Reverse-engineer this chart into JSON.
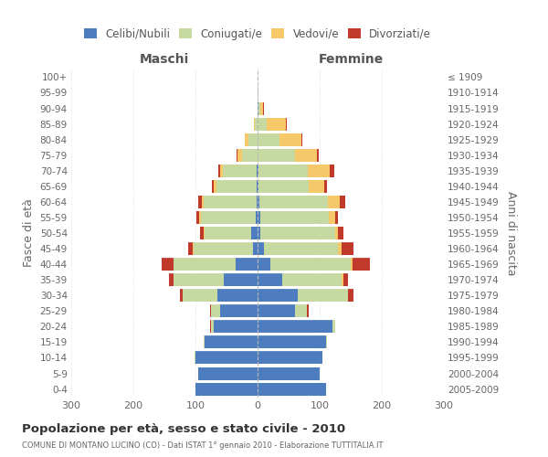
{
  "age_groups": [
    "0-4",
    "5-9",
    "10-14",
    "15-19",
    "20-24",
    "25-29",
    "30-34",
    "35-39",
    "40-44",
    "45-49",
    "50-54",
    "55-59",
    "60-64",
    "65-69",
    "70-74",
    "75-79",
    "80-84",
    "85-89",
    "90-94",
    "95-99",
    "100+"
  ],
  "birth_years": [
    "2005-2009",
    "2000-2004",
    "1995-1999",
    "1990-1994",
    "1985-1989",
    "1980-1984",
    "1975-1979",
    "1970-1974",
    "1965-1969",
    "1960-1964",
    "1955-1959",
    "1950-1954",
    "1945-1949",
    "1940-1944",
    "1935-1939",
    "1930-1934",
    "1925-1929",
    "1920-1924",
    "1915-1919",
    "1910-1914",
    "≤ 1909"
  ],
  "males_celibi": [
    100,
    95,
    100,
    85,
    70,
    60,
    65,
    55,
    35,
    8,
    10,
    3,
    2,
    1,
    1,
    0,
    0,
    0,
    0,
    0,
    0
  ],
  "males_coniugati": [
    0,
    0,
    1,
    2,
    5,
    15,
    55,
    80,
    100,
    95,
    75,
    88,
    85,
    65,
    55,
    25,
    15,
    4,
    0,
    0,
    0
  ],
  "males_vedovi": [
    0,
    0,
    0,
    0,
    0,
    0,
    0,
    0,
    1,
    1,
    2,
    3,
    3,
    5,
    5,
    8,
    5,
    2,
    0,
    0,
    0
  ],
  "males_divorziati": [
    0,
    0,
    0,
    0,
    1,
    2,
    5,
    8,
    18,
    8,
    5,
    5,
    5,
    3,
    2,
    1,
    0,
    0,
    0,
    0,
    0
  ],
  "females_nubili": [
    110,
    100,
    105,
    110,
    120,
    60,
    65,
    40,
    20,
    10,
    5,
    5,
    3,
    2,
    1,
    0,
    0,
    0,
    1,
    0,
    0
  ],
  "females_coniugate": [
    0,
    0,
    0,
    2,
    5,
    20,
    80,
    95,
    130,
    120,
    120,
    110,
    110,
    80,
    80,
    60,
    35,
    15,
    3,
    1,
    0
  ],
  "females_vedove": [
    0,
    0,
    0,
    0,
    0,
    0,
    1,
    3,
    3,
    5,
    5,
    10,
    20,
    25,
    35,
    35,
    35,
    30,
    5,
    1,
    0
  ],
  "females_divorziate": [
    0,
    0,
    0,
    0,
    0,
    2,
    8,
    8,
    28,
    20,
    8,
    5,
    8,
    5,
    8,
    3,
    2,
    2,
    1,
    0,
    0
  ],
  "col_celibi": "#4d7dbe",
  "col_coniugati": "#c5d9a0",
  "col_vedovi": "#f5c96a",
  "col_divorziati": "#c0392b",
  "xlim": 300,
  "title": "Popolazione per età, sesso e stato civile - 2010",
  "subtitle": "COMUNE DI MONTANO LUCINO (CO) - Dati ISTAT 1° gennaio 2010 - Elaborazione TUTTITALIA.IT",
  "ylabel_left": "Fasce di età",
  "ylabel_right": "Anni di nascita",
  "label_maschi": "Maschi",
  "label_femmine": "Femmine",
  "legend_labels": [
    "Celibi/Nubili",
    "Coniugati/e",
    "Vedovi/e",
    "Divorziati/e"
  ]
}
